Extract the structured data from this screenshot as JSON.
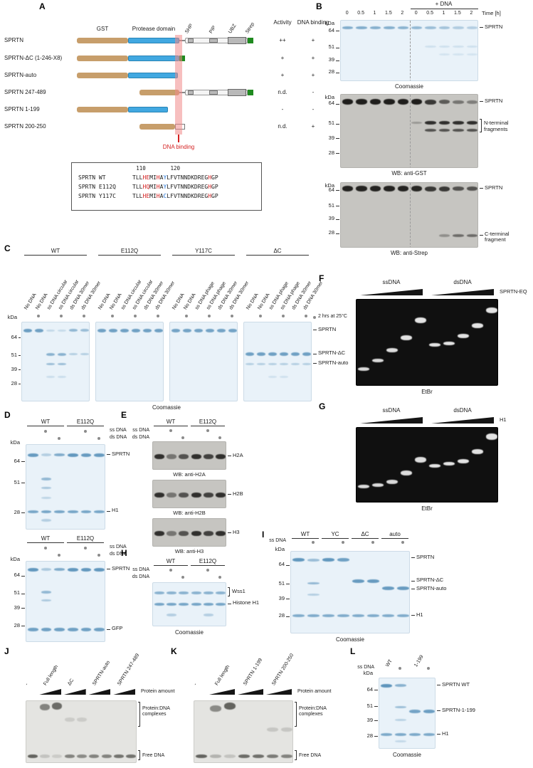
{
  "colors": {
    "gst": "#c79e6b",
    "protease": "#41a8e1",
    "domain_grey": "#b9b9b9",
    "strep": "#1f8a1f",
    "dna_binding_stripe": "#f08a8a",
    "annotation_red": "#d42020",
    "residue_blue": "#1a6fd4",
    "coomassie_bg": "#e9f2f9",
    "coomassie_band": "#3d7fae",
    "blot_bg": "#c6c5c1",
    "blot_band": "#171614",
    "etbr_bg": "#101010",
    "etbr_band": "#efefef",
    "emsa_bg": "#e4e4e1",
    "emsa_band": "#44443f"
  },
  "panels": {
    "A": {
      "label": "A",
      "domains": {
        "gst": "GST",
        "protease": "Protease domain",
        "shp": "SHP",
        "pip": "PIP",
        "ubz": "UBZ",
        "strep": "Strep"
      },
      "table_headers": {
        "activity": "Activity",
        "dna_binding": "DNA binding"
      },
      "constructs": [
        {
          "name": "SPRTN",
          "activity": "++",
          "dna_binding": "+"
        },
        {
          "name": "SPRTN-ΔC (1-246-X8)",
          "activity": "+",
          "dna_binding": "+"
        },
        {
          "name": "SPRTN-auto",
          "activity": "+",
          "dna_binding": "+"
        },
        {
          "name": "SPRTN 247-489",
          "activity": "n.d.",
          "dna_binding": "-"
        },
        {
          "name": "SPRTN 1-199",
          "activity": "-",
          "dna_binding": "-"
        },
        {
          "name": "SPRTN 200-250",
          "activity": "n.d.",
          "dna_binding": "+"
        }
      ],
      "stripe_label": "DNA binding",
      "alignment": {
        "ruler": [
          {
            "text": "110",
            "index": 2
          },
          {
            "text": "120",
            "index": 12
          }
        ],
        "rows": [
          {
            "name": "SPRTN WT",
            "seq": "TLLHEMIHAYLFVTNNDKDREGHGP"
          },
          {
            "name": "SPRTN E112Q",
            "seq": "TLLHQMIHAYLFVTNNDKDREGHGP"
          },
          {
            "name": "SPRTN Y117C",
            "seq": "TLLHEMIHACLFVTNNDKDREGHGP"
          }
        ],
        "red_indices": [
          3,
          4,
          7,
          22
        ],
        "blue_indices": [
          9
        ]
      }
    },
    "B": {
      "label": "B",
      "time_points": [
        "0",
        "0.5",
        "1",
        "1.5",
        "2",
        "0",
        "0.5",
        "1",
        "1.5",
        "2"
      ],
      "plus_dna": "+ DNA",
      "time_unit": "Time [h]",
      "kda_unit": "kDa",
      "blots": [
        {
          "caption": "Coomassie",
          "kda": [
            "64",
            "51",
            "39",
            "28"
          ],
          "labels": [
            "SPRTN"
          ]
        },
        {
          "caption": "WB: anti-GST",
          "kda": [
            "64",
            "51",
            "39",
            "28"
          ],
          "labels": [
            "SPRTN",
            "N-terminal fragments"
          ]
        },
        {
          "caption": "WB: anti-Strep",
          "kda": [
            "64",
            "51",
            "39",
            "28"
          ],
          "labels": [
            "SPRTN",
            "C-terminal fragment"
          ]
        }
      ]
    },
    "C": {
      "label": "C",
      "groups": [
        {
          "name": "WT",
          "lanes": [
            "No DNA",
            "No DNA",
            "ss DNA circular",
            "ss DNA circular",
            "ds DNA 30mer",
            "ds DNA 30mer"
          ]
        },
        {
          "name": "E112Q",
          "lanes": [
            "No DNA",
            "No DNA",
            "ss DNA circular",
            "ss DNA circular",
            "ds DNA 30mer",
            "ds DNA 30mer"
          ]
        },
        {
          "name": "Y117C",
          "lanes": [
            "No DNA",
            "No DNA",
            "ss DNA phage",
            "ss DNA phage",
            "ds DNA 30mer",
            "ds DNA 30mer"
          ]
        },
        {
          "name": "ΔC",
          "lanes": [
            "No DNA",
            "No DNA",
            "ss DNA phage",
            "ss DNA phage",
            "ds DNA 30mer",
            "ds DNA 30mer"
          ]
        }
      ],
      "incubation_note": "2 hrs at 25°C",
      "kda_unit": "kDa",
      "kda": [
        "64",
        "51",
        "39",
        "28"
      ],
      "labels": [
        "SPRTN",
        "SPRTN-ΔC",
        "SPRTN-auto"
      ],
      "caption": "Coomassie"
    },
    "D": {
      "label": "D",
      "gels": [
        {
          "headers": [
            "WT",
            "E112Q"
          ],
          "rows": [
            "ss DNA",
            "ds DNA"
          ],
          "kda_unit": "kDa",
          "kda": [
            "64",
            "51",
            "28"
          ],
          "labels": [
            "SPRTN",
            "H1"
          ]
        },
        {
          "headers": [
            "WT",
            "E112Q"
          ],
          "rows": [
            "ss DNA",
            "ds DNA"
          ],
          "kda_unit": "kDa",
          "kda": [
            "64",
            "51",
            "39",
            "28"
          ],
          "labels": [
            "SPRTN",
            "GFP"
          ]
        }
      ]
    },
    "E": {
      "label": "E",
      "headers": [
        "WT",
        "E112Q"
      ],
      "rows": [
        "ss DNA",
        "ds DNA"
      ],
      "blots": [
        {
          "band_label": "H2A",
          "caption": "WB: anti-H2A"
        },
        {
          "band_label": "H2B",
          "caption": "WB: anti-H2B"
        },
        {
          "band_label": "H3",
          "caption": "WB: anti-H3"
        }
      ]
    },
    "F": {
      "label": "F",
      "left_title": "ssDNA",
      "right_title": "dsDNA",
      "protein": "SPRTN-EQ",
      "caption": "EtBr"
    },
    "G": {
      "label": "G",
      "left_title": "ssDNA",
      "right_title": "dsDNA",
      "protein": "H1",
      "caption": "EtBr"
    },
    "H": {
      "label": "H",
      "headers": [
        "WT",
        "E112Q"
      ],
      "rows": [
        "ss DNA",
        "ds DNA"
      ],
      "labels": [
        "Wss1",
        "Histone H1"
      ],
      "caption": "Coomassie"
    },
    "I": {
      "label": "I",
      "dna_row": "ss DNA",
      "headers": [
        "WT",
        "YC",
        "ΔC",
        "auto"
      ],
      "kda_unit": "kDa",
      "kda": [
        "64",
        "51",
        "39",
        "28"
      ],
      "labels": [
        "SPRTN",
        "SPRTN-ΔC",
        "SPRTN-auto",
        "H1"
      ],
      "caption": "Coomassie"
    },
    "J": {
      "label": "J",
      "lane_titles": [
        "-",
        "Full length",
        "ΔC",
        "SPRTN-auto",
        "SPRTN 247-489"
      ],
      "amount_label": "Protein amount",
      "labels": [
        "Protein:DNA complexes",
        "Free DNA"
      ]
    },
    "K": {
      "label": "K",
      "lane_titles": [
        "-",
        "Full length",
        "SPRTN 1-199",
        "SPRTN 200-250"
      ],
      "amount_label": "Protein amount",
      "labels": [
        "Protein:DNA complexes",
        "Free DNA"
      ]
    },
    "L": {
      "label": "L",
      "dna_row": "ss DNA",
      "headers": [
        "WT",
        "1-199"
      ],
      "kda_unit": "kDa",
      "kda": [
        "64",
        "51",
        "39",
        "28"
      ],
      "labels": [
        "SPRTN WT",
        "SPRTN-1-199",
        "H1"
      ],
      "caption": "Coomassie"
    }
  }
}
